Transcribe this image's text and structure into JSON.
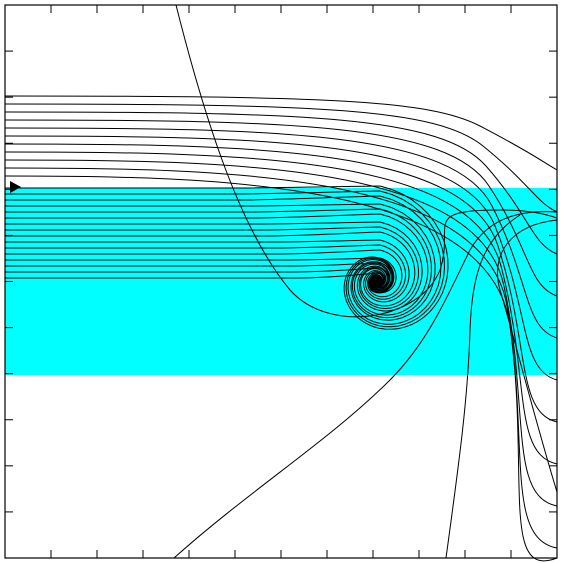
{
  "figure": {
    "type": "phase-portrait",
    "background_color": "#ffffff",
    "band_color": "#00ffff",
    "line_color": "#000000",
    "x_ticks": 11,
    "y_ticks": 11,
    "fixed_point": "filled-circle",
    "start_marker": "right-triangle"
  }
}
